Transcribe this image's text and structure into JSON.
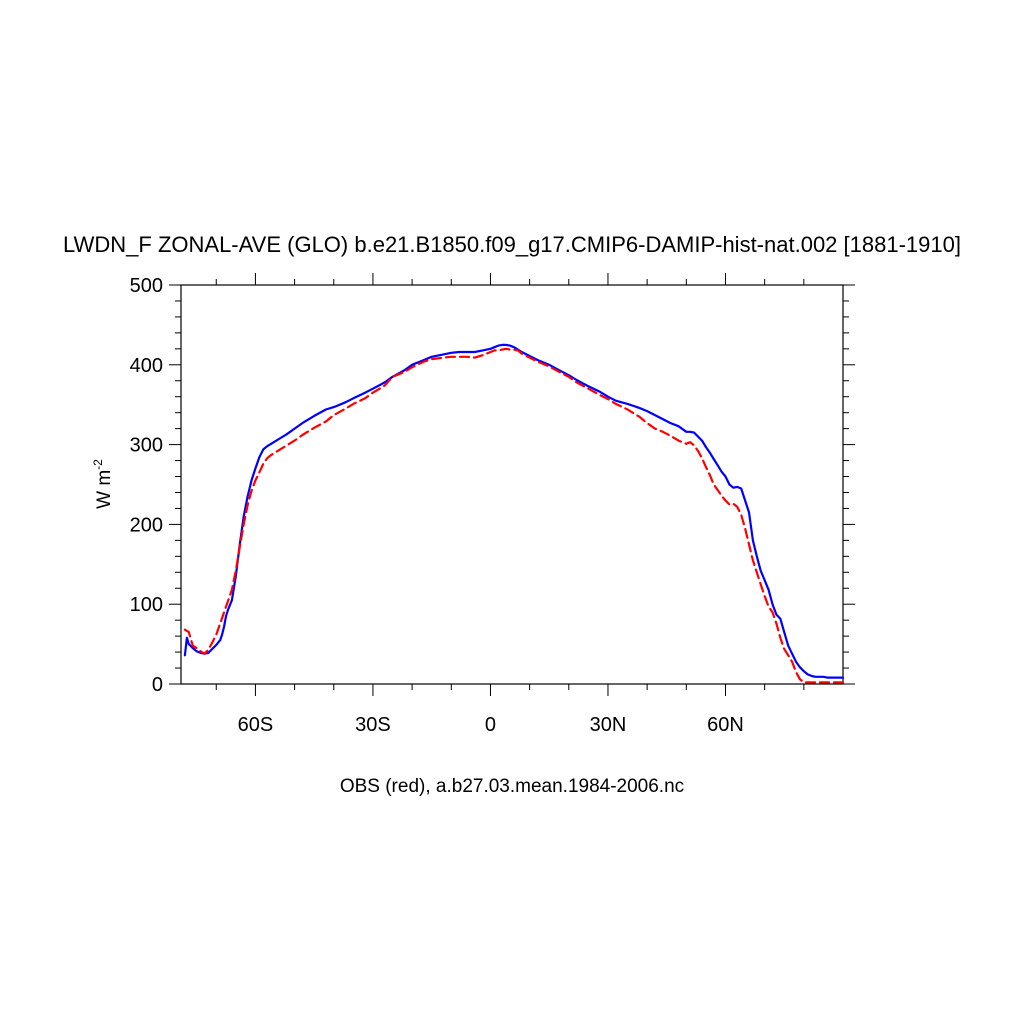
{
  "chart_data": {
    "type": "line",
    "title": "LWDN_F ZONAL-AVE (GLO) b.e21.B1850.f09_g17.CMIP6-DAMIP-hist-nat.002 [1881-1910]",
    "ylabel": "W m",
    "ylabel_sup": "-2",
    "xlabel": "OBS (red), a.b27.03.mean.1984-2006.nc",
    "xlim": [
      -79,
      90
    ],
    "ylim": [
      0,
      500
    ],
    "x_ticks": [
      {
        "value": -60,
        "label": "60S"
      },
      {
        "value": -30,
        "label": "30S"
      },
      {
        "value": 0,
        "label": "0"
      },
      {
        "value": 30,
        "label": "30N"
      },
      {
        "value": 60,
        "label": "60N"
      }
    ],
    "y_ticks": [
      {
        "value": 0,
        "label": "0"
      },
      {
        "value": 100,
        "label": "100"
      },
      {
        "value": 200,
        "label": "200"
      },
      {
        "value": 300,
        "label": "300"
      },
      {
        "value": 400,
        "label": "400"
      },
      {
        "value": 500,
        "label": "500"
      }
    ],
    "grid": false,
    "series": [
      {
        "color": "#0000ff",
        "dash": "solid",
        "x": [
          -78,
          -77.5,
          -77,
          -76,
          -75,
          -74,
          -73,
          -72,
          -71,
          -70,
          -69,
          -68.5,
          -68,
          -67.5,
          -67,
          -66,
          -65,
          -64,
          -63,
          -62,
          -61,
          -60,
          -59,
          -58,
          -57,
          -56,
          -55,
          -54,
          -52,
          -50,
          -48,
          -45,
          -42,
          -40,
          -37,
          -35,
          -32,
          -30,
          -27,
          -25,
          -22,
          -20,
          -17,
          -15,
          -12,
          -10,
          -8,
          -6,
          -4,
          -2,
          0,
          1,
          2,
          3,
          4,
          5,
          6,
          7,
          8,
          10,
          12,
          15,
          18,
          20,
          22,
          25,
          28,
          30,
          32,
          35,
          38,
          40,
          42,
          44,
          46,
          48,
          50,
          51,
          52,
          53,
          54,
          55,
          56,
          57,
          58,
          59,
          60,
          61,
          62,
          63,
          64,
          65,
          66,
          67,
          68,
          69,
          70,
          71,
          72,
          73,
          74,
          75,
          76,
          77,
          78,
          79,
          80,
          81,
          82,
          83,
          84,
          85,
          86,
          88,
          90
        ],
        "y": [
          36,
          58,
          50,
          45,
          41,
          39,
          38,
          39,
          44,
          49,
          55,
          62,
          72,
          85,
          93,
          105,
          135,
          175,
          210,
          235,
          255,
          270,
          284,
          294,
          298,
          301,
          304,
          307,
          313,
          320,
          327,
          336,
          344,
          347,
          353,
          358,
          365,
          370,
          378,
          385,
          393,
          400,
          406,
          410,
          413,
          415,
          416,
          416,
          416,
          418,
          420,
          422,
          424,
          425,
          425,
          424,
          422,
          419,
          416,
          411,
          406,
          400,
          392,
          387,
          381,
          373,
          366,
          360,
          355,
          351,
          346,
          342,
          337,
          332,
          327,
          323,
          316,
          316,
          315,
          310,
          305,
          297,
          290,
          282,
          274,
          266,
          260,
          250,
          246,
          247,
          245,
          230,
          215,
          180,
          160,
          142,
          130,
          118,
          100,
          87,
          82,
          65,
          48,
          38,
          28,
          21,
          16,
          12,
          10,
          9,
          9,
          9,
          8,
          8,
          8
        ]
      },
      {
        "color": "#ff0000",
        "dash": "dashed",
        "x": [
          -78,
          -77,
          -76,
          -75,
          -74,
          -73,
          -72,
          -71,
          -70,
          -69,
          -68,
          -67,
          -66,
          -65,
          -64,
          -63,
          -62,
          -61,
          -60,
          -59,
          -58,
          -57,
          -56,
          -55,
          -54,
          -52,
          -50,
          -48,
          -45,
          -42,
          -40,
          -37,
          -35,
          -32,
          -30,
          -27,
          -25,
          -22,
          -20,
          -17,
          -15,
          -12,
          -10,
          -8,
          -6,
          -4,
          -2,
          0,
          1,
          2,
          3,
          4,
          5,
          6,
          7,
          8,
          10,
          12,
          15,
          18,
          20,
          22,
          25,
          28,
          30,
          32,
          35,
          38,
          40,
          42,
          44,
          46,
          48,
          50,
          51,
          52,
          53,
          54,
          55,
          56,
          57,
          58,
          59,
          60,
          61,
          62,
          63,
          64,
          65,
          66,
          67,
          68,
          69,
          70,
          71,
          72,
          73,
          74,
          75,
          76,
          77,
          78,
          79,
          80,
          81,
          82,
          83,
          84,
          85,
          86,
          88,
          90
        ],
        "y": [
          68,
          65,
          48,
          45,
          41,
          38,
          43,
          52,
          62,
          76,
          90,
          104,
          118,
          142,
          172,
          200,
          224,
          242,
          255,
          265,
          276,
          283,
          287,
          290,
          293,
          299,
          305,
          312,
          321,
          329,
          337,
          345,
          351,
          358,
          365,
          374,
          385,
          391,
          397,
          404,
          407,
          409,
          410,
          410,
          410,
          409,
          412,
          416,
          418,
          418,
          419,
          420,
          419,
          419,
          418,
          414,
          409,
          404,
          398,
          390,
          385,
          378,
          370,
          362,
          357,
          351,
          344,
          335,
          327,
          320,
          316,
          311,
          305,
          301,
          303,
          299,
          292,
          283,
          272,
          262,
          250,
          243,
          236,
          230,
          225,
          226,
          222,
          212,
          195,
          175,
          155,
          140,
          125,
          110,
          97,
          90,
          76,
          58,
          44,
          36,
          28,
          15,
          6,
          2,
          2,
          2,
          2,
          2,
          2,
          2,
          2,
          2
        ]
      }
    ]
  }
}
